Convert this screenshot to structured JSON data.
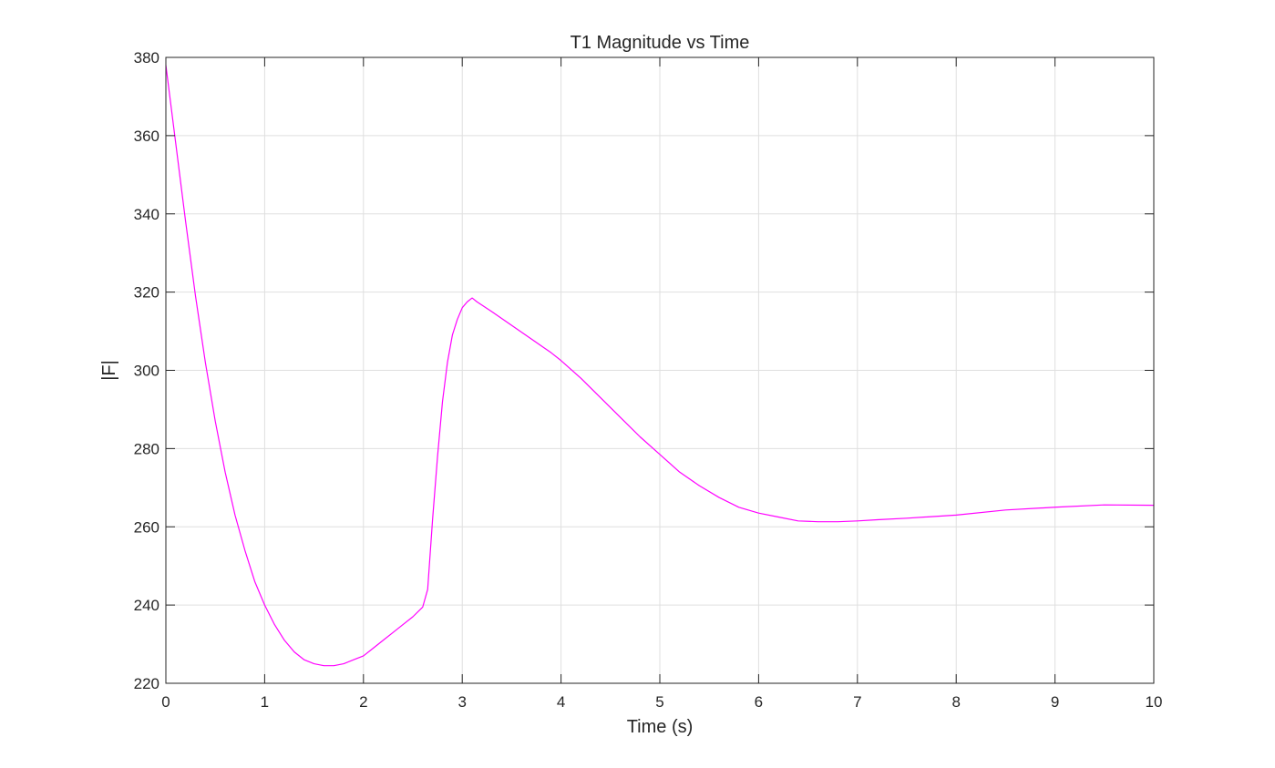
{
  "chart_data": {
    "type": "line",
    "title": "T1 Magnitude vs Time",
    "xlabel": "Time (s)",
    "ylabel": "|F|",
    "xlim": [
      0,
      10
    ],
    "ylim": [
      220,
      380
    ],
    "xticks": [
      "0",
      "1",
      "2",
      "3",
      "4",
      "5",
      "6",
      "7",
      "8",
      "9",
      "10"
    ],
    "yticks": [
      "220",
      "240",
      "260",
      "280",
      "300",
      "320",
      "340",
      "360",
      "380"
    ],
    "grid": true,
    "line_color": "#ff00ff",
    "series": [
      {
        "x": [
          0,
          0.1,
          0.2,
          0.3,
          0.4,
          0.5,
          0.6,
          0.7,
          0.8,
          0.9,
          1.0,
          1.1,
          1.2,
          1.3,
          1.4,
          1.5,
          1.6,
          1.7,
          1.8,
          1.9,
          2.0,
          2.1,
          2.2,
          2.3,
          2.4,
          2.5,
          2.6,
          2.65,
          2.7,
          2.75,
          2.8,
          2.85,
          2.9,
          2.95,
          3.0,
          3.05,
          3.1,
          3.15,
          3.3,
          3.5,
          3.7,
          3.9,
          4.0,
          4.2,
          4.4,
          4.6,
          4.8,
          5.0,
          5.2,
          5.4,
          5.6,
          5.8,
          6.0,
          6.2,
          6.4,
          6.6,
          6.8,
          7.0,
          7.2,
          7.5,
          8.0,
          8.5,
          9.0,
          9.5,
          10.0
        ],
        "y": [
          378,
          358,
          338,
          319,
          302,
          287,
          274,
          263,
          254,
          246,
          240,
          235,
          231,
          228,
          226,
          225,
          224.5,
          224.5,
          225,
          226,
          227,
          229,
          231,
          233,
          235,
          237,
          239.5,
          244,
          262,
          278,
          292,
          302,
          309,
          313,
          316,
          317.5,
          318.5,
          317.5,
          315,
          311.5,
          308,
          304.5,
          302.5,
          298,
          293,
          288,
          283,
          278.5,
          274,
          270.5,
          267.5,
          265,
          263.5,
          262.5,
          261.5,
          261.3,
          261.3,
          261.5,
          261.8,
          262.2,
          263,
          264.3,
          265,
          265.6,
          265.5
        ]
      }
    ]
  }
}
